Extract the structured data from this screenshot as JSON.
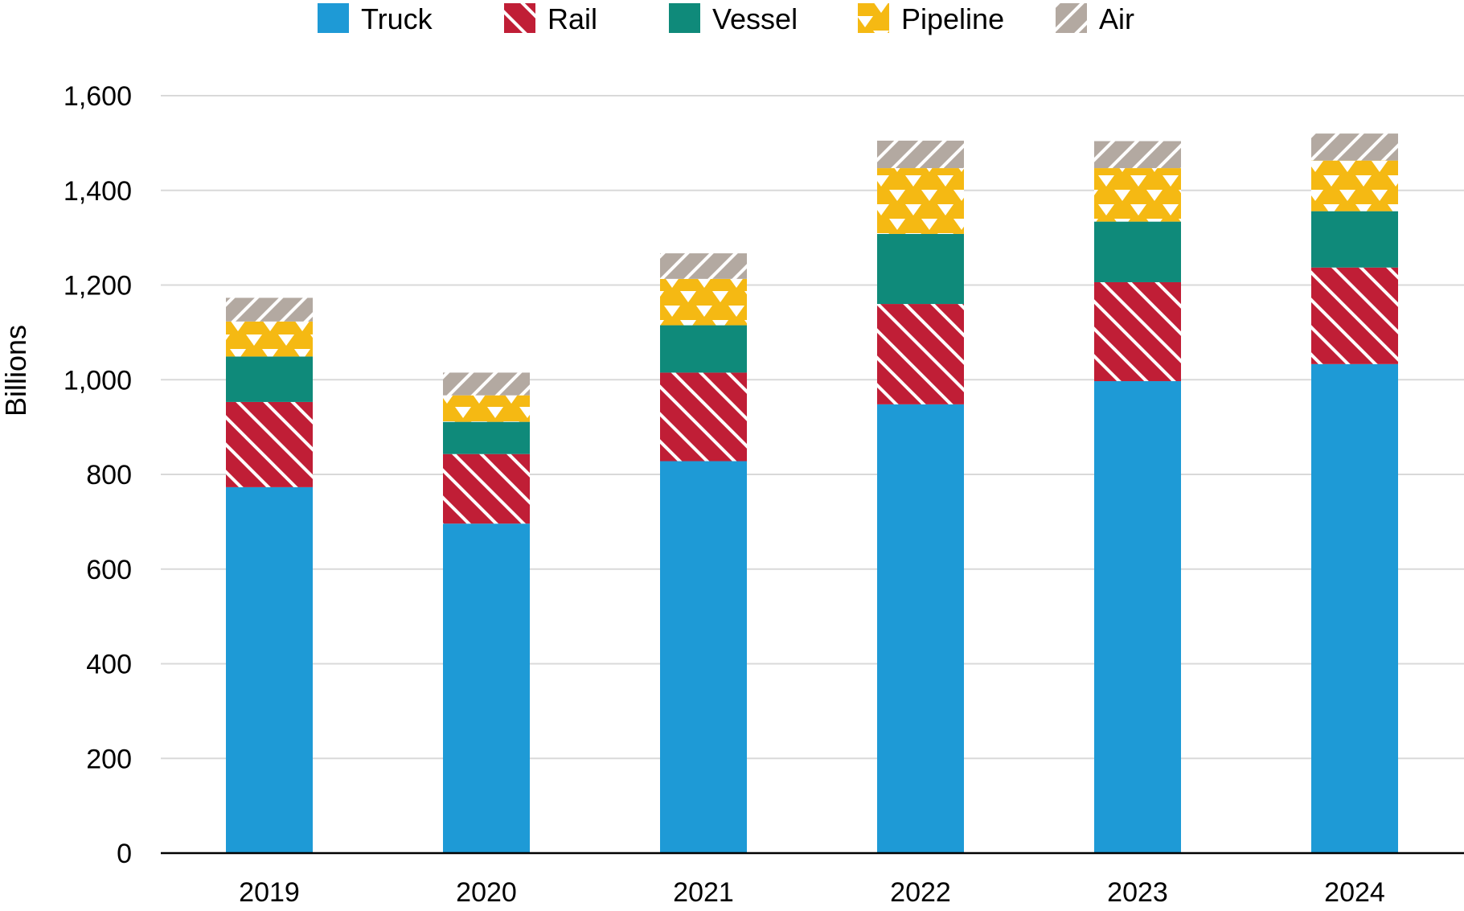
{
  "chart_data": {
    "type": "bar",
    "stacked": true,
    "title": "",
    "xlabel": "",
    "ylabel": "Billions",
    "ylim": [
      0,
      1600
    ],
    "ytick_step": 200,
    "ytick_labels": [
      "0",
      "200",
      "400",
      "600",
      "800",
      "1,000",
      "1,200",
      "1,400",
      "1,600"
    ],
    "grid": true,
    "legend_position": "top",
    "categories": [
      "2019",
      "2020",
      "2021",
      "2022",
      "2023",
      "2024"
    ],
    "series": [
      {
        "name": "Truck",
        "color": "#1E9AD6",
        "pattern": "solid",
        "values": [
          773,
          696,
          828,
          948,
          997,
          1033
        ]
      },
      {
        "name": "Rail",
        "color": "#C01E36",
        "pattern": "diagonal",
        "values": [
          180,
          147,
          187,
          212,
          209,
          204
        ]
      },
      {
        "name": "Vessel",
        "color": "#0F8A7A",
        "pattern": "solid",
        "values": [
          96,
          68,
          100,
          148,
          128,
          119
        ]
      },
      {
        "name": "Pipeline",
        "color": "#F5B913",
        "pattern": "triangles",
        "values": [
          74,
          56,
          98,
          139,
          113,
          107
        ]
      },
      {
        "name": "Air",
        "color": "#B3A9A1",
        "pattern": "hatch",
        "values": [
          50,
          48,
          54,
          58,
          57,
          57
        ]
      }
    ]
  }
}
